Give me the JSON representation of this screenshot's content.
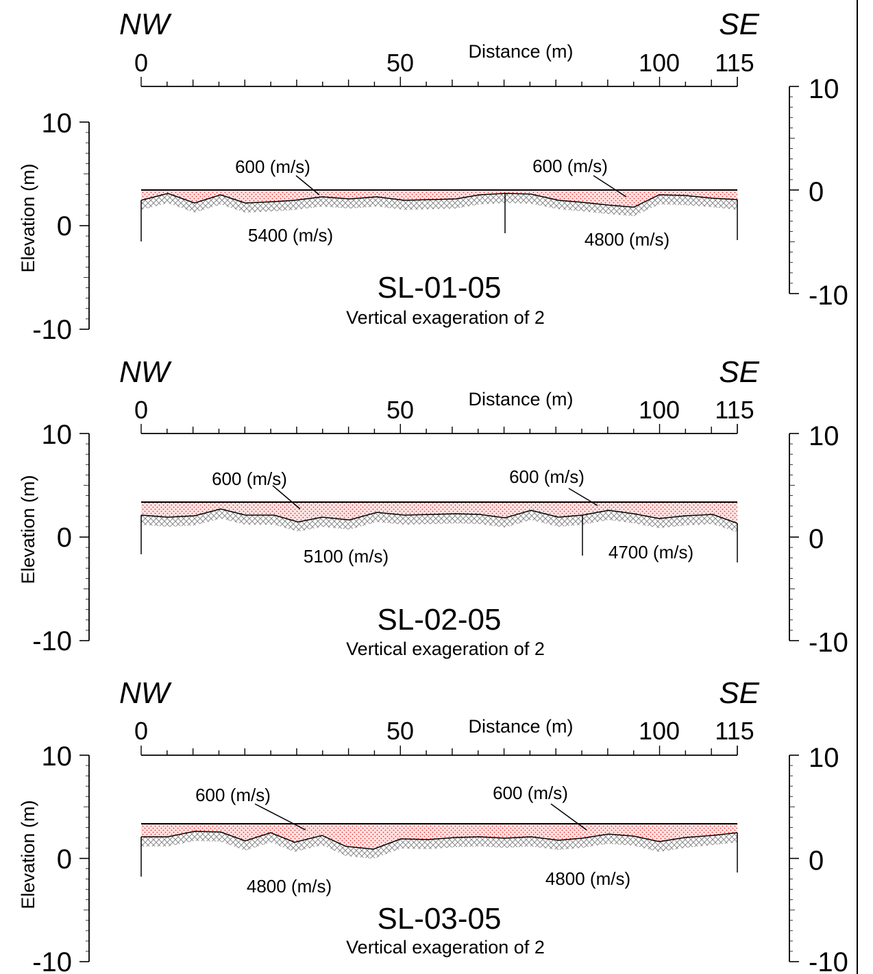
{
  "colors": {
    "ink": "#000000",
    "layer_fill": "#fde5e5",
    "layer_dots": "#e8322f",
    "bedrock_hatch": "#8a8a8a"
  },
  "panels": [
    {
      "id": "SL-01-05",
      "dir_left": "NW",
      "dir_right": "SE",
      "x_axis_label": "Distance (m)",
      "x_ticks": [
        "0",
        "50",
        "100",
        "115"
      ],
      "y_axis_label": "Elevation (m)",
      "y_ticks": [
        "10",
        "0",
        "-10"
      ],
      "right_ticks": [
        "10",
        "0",
        "-10"
      ],
      "title": "SL-01-05",
      "subtitle": "Vertical exageration of 2",
      "layer_labels": [
        "600 (m/s)",
        "600 (m/s)"
      ],
      "bedrock_labels": [
        "5400 (m/s)",
        "4800 (m/s)"
      ]
    },
    {
      "id": "SL-02-05",
      "dir_left": "NW",
      "dir_right": "SE",
      "x_axis_label": "Distance (m)",
      "x_ticks": [
        "0",
        "50",
        "100",
        "115"
      ],
      "y_axis_label": "Elevation (m)",
      "y_ticks": [
        "10",
        "0",
        "-10"
      ],
      "right_ticks": [
        "10",
        "0",
        "-10"
      ],
      "title": "SL-02-05",
      "subtitle": "Vertical exageration of 2",
      "layer_labels": [
        "600 (m/s)",
        "600 (m/s)"
      ],
      "bedrock_labels": [
        "5100 (m/s)",
        "4700 (m/s)"
      ]
    },
    {
      "id": "SL-03-05",
      "dir_left": "NW",
      "dir_right": "SE",
      "x_axis_label": "Distance (m)",
      "x_ticks": [
        "0",
        "50",
        "100",
        "115"
      ],
      "y_axis_label": "Elevation (m)",
      "y_ticks": [
        "10",
        "0",
        "-10"
      ],
      "right_ticks": [
        "10",
        "0",
        "-10"
      ],
      "title": "SL-03-05",
      "subtitle": "Vertical exageration of 2",
      "layer_labels": [
        "600 (m/s)",
        "600 (m/s)"
      ],
      "bedrock_labels": [
        "4800 (m/s)",
        "4800 (m/s)"
      ]
    }
  ]
}
